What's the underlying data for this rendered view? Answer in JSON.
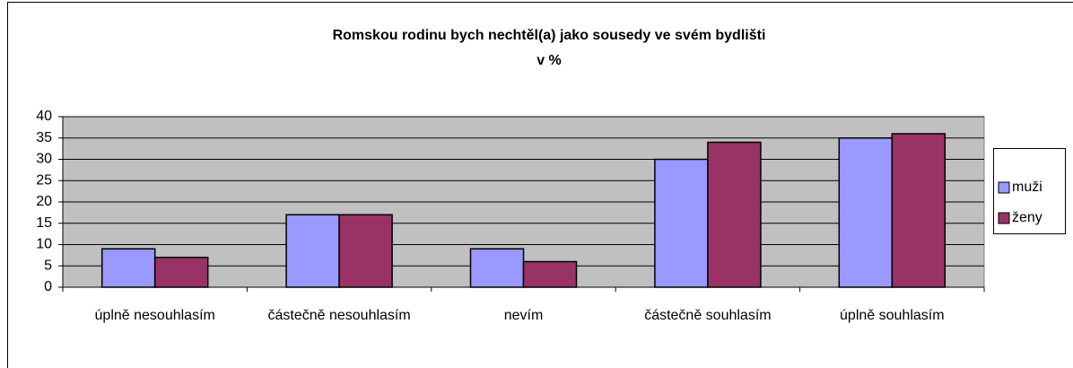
{
  "chart_data": {
    "type": "bar",
    "title": "Romskou rodinu bych nechtěl(a) jako sousedy ve svém bydlišti",
    "subtitle": "v %",
    "categories": [
      "úplně nesouhlasím",
      "částečně nesouhlasím",
      "nevím",
      "částečně souhlasím",
      "úplně souhlasím"
    ],
    "series": [
      {
        "name": "muži",
        "color": "#9999ff",
        "values": [
          9,
          17,
          9,
          30,
          35
        ]
      },
      {
        "name": "ženy",
        "color": "#993366",
        "values": [
          7,
          17,
          6,
          34,
          36
        ]
      }
    ],
    "ylim": [
      0,
      40
    ],
    "yticks": [
      0,
      5,
      10,
      15,
      20,
      25,
      30,
      35,
      40
    ],
    "grid": true,
    "legend": "right"
  }
}
